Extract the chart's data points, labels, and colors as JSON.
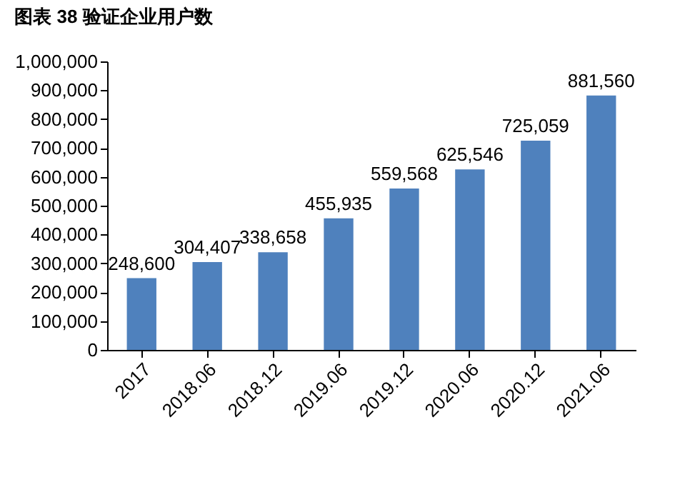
{
  "chart_data": {
    "type": "bar",
    "title": "图表 38 验证企业用户数",
    "categories": [
      "2017",
      "2018.06",
      "2018.12",
      "2019.06",
      "2019.12",
      "2020.06",
      "2020.12",
      "2021.06"
    ],
    "values": [
      248600,
      304407,
      338658,
      455935,
      559568,
      625546,
      725059,
      881560
    ],
    "value_labels": [
      "248,600",
      "304,407",
      "338,658",
      "455,935",
      "559,568",
      "625,546",
      "725,059",
      "881,560"
    ],
    "color": "#4f81bd",
    "ylim": [
      0,
      1000000
    ],
    "yticks": [
      0,
      {
        "value": 100000,
        "label": "100,000"
      },
      {
        "value": 200000,
        "label": "200,000"
      },
      {
        "value": 300000,
        "label": "300,000"
      },
      {
        "value": 400000,
        "label": "400,000"
      },
      {
        "value": 500000,
        "label": "500,000"
      },
      {
        "value": 600000,
        "label": "600,000"
      },
      {
        "value": 700000,
        "label": "700,000"
      },
      {
        "value": 800000,
        "label": "800,000"
      },
      {
        "value": 900000,
        "label": "900,000"
      },
      {
        "value": 1000000,
        "label": "1,000,000"
      }
    ],
    "grid": false
  }
}
